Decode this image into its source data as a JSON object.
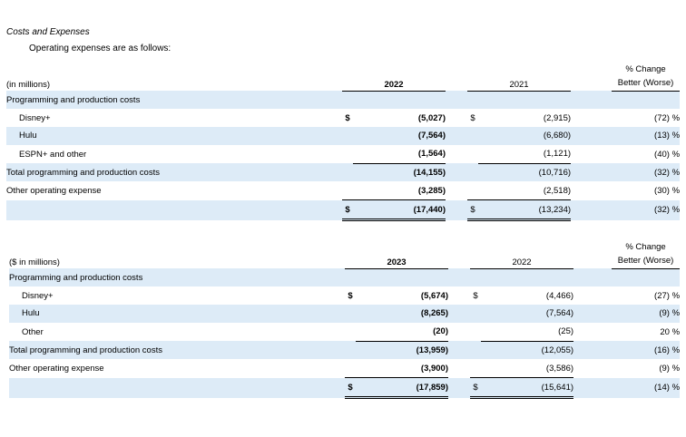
{
  "section_title": "Costs and Expenses",
  "intro": "Operating expenses are as follows:",
  "tables": [
    {
      "unit_label": "(in millions)",
      "year_current": "2022",
      "year_prior": "2021",
      "change_header_line1": "% Change",
      "change_header_line2": "Better (Worse)",
      "rows": [
        {
          "label": "Programming and production costs",
          "dollar_current": "",
          "current": "",
          "dollar_prior": "",
          "prior": "",
          "change": ""
        },
        {
          "label": "Disney+",
          "dollar_current": "$",
          "current": "(5,027)",
          "dollar_prior": "$",
          "prior": "(2,915)",
          "change": "(72) %"
        },
        {
          "label": "Hulu",
          "dollar_current": "",
          "current": "(7,564)",
          "dollar_prior": "",
          "prior": "(6,680)",
          "change": "(13) %"
        },
        {
          "label": "ESPN+ and other",
          "dollar_current": "",
          "current": "(1,564)",
          "dollar_prior": "",
          "prior": "(1,121)",
          "change": "(40) %"
        },
        {
          "label": "Total programming and production costs",
          "dollar_current": "",
          "current": "(14,155)",
          "dollar_prior": "",
          "prior": "(10,716)",
          "change": "(32) %"
        },
        {
          "label": "Other operating expense",
          "dollar_current": "",
          "current": "(3,285)",
          "dollar_prior": "",
          "prior": "(2,518)",
          "change": "(30) %"
        },
        {
          "label": "",
          "dollar_current": "$",
          "current": "(17,440)",
          "dollar_prior": "$",
          "prior": "(13,234)",
          "change": "(32) %"
        }
      ]
    },
    {
      "unit_label": "($ in millions)",
      "year_current": "2023",
      "year_prior": "2022",
      "change_header_line1": "% Change",
      "change_header_line2": "Better (Worse)",
      "rows": [
        {
          "label": "Programming and production costs",
          "dollar_current": "",
          "current": "",
          "dollar_prior": "",
          "prior": "",
          "change": ""
        },
        {
          "label": "Disney+",
          "dollar_current": "$",
          "current": "(5,674)",
          "dollar_prior": "$",
          "prior": "(4,466)",
          "change": "(27) %"
        },
        {
          "label": "Hulu",
          "dollar_current": "",
          "current": "(8,265)",
          "dollar_prior": "",
          "prior": "(7,564)",
          "change": "(9) %"
        },
        {
          "label": "Other",
          "dollar_current": "",
          "current": "(20)",
          "dollar_prior": "",
          "prior": "(25)",
          "change": "20 %"
        },
        {
          "label": "Total programming and production costs",
          "dollar_current": "",
          "current": "(13,959)",
          "dollar_prior": "",
          "prior": "(12,055)",
          "change": "(16) %"
        },
        {
          "label": "Other operating expense",
          "dollar_current": "",
          "current": "(3,900)",
          "dollar_prior": "",
          "prior": "(3,586)",
          "change": "(9) %"
        },
        {
          "label": "",
          "dollar_current": "$",
          "current": "(17,859)",
          "dollar_prior": "$",
          "prior": "(15,641)",
          "change": "(14) %"
        }
      ]
    }
  ]
}
